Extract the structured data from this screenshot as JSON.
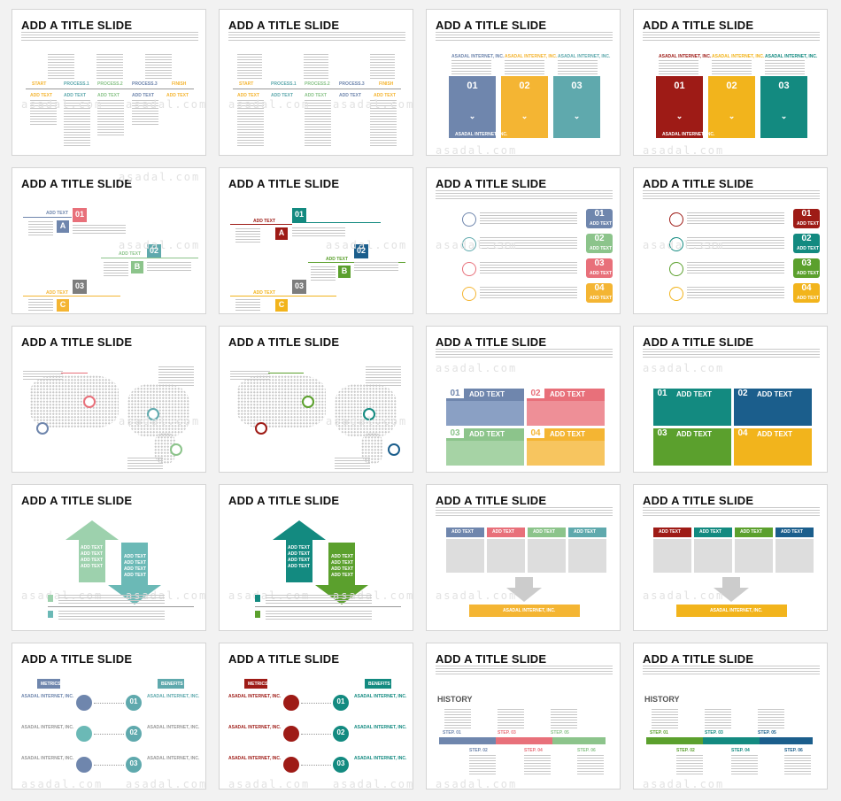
{
  "title": "ADD A TITLE SLIDE",
  "watermark": "asadal.com",
  "labels": {
    "add_text": "ADD TEXT",
    "start": "START",
    "process1": "PROCESS.1",
    "process2": "PROCESS.2",
    "process3": "PROCESS.3",
    "finish": "FINISH",
    "company": "ASADAL INTERNET, INC.",
    "metrics": "METRICS",
    "benefits": "BENEFITS",
    "history": "HISTORY",
    "n01": "01",
    "n02": "02",
    "n03": "03",
    "n04": "04",
    "A": "A",
    "B": "B",
    "C": "C",
    "step01": "STEP. 01",
    "step02": "STEP. 02",
    "step03": "STEP. 03",
    "step04": "STEP. 04",
    "step05": "STEP. 05",
    "step06": "STEP. 06"
  },
  "colors": {
    "blue": "#6f86ad",
    "gold": "#f4b533",
    "teal": "#5fa9ad",
    "green": "#8cc48b",
    "pink": "#e8707a",
    "orange": "#f5a623",
    "gray": "#7d7d7d",
    "darkred": "#9e1b16",
    "yellow": "#f2b41c",
    "darkteal": "#138a80",
    "lime": "#5ba02d",
    "navy": "#1b5e8c",
    "lightgreen": "#9dd1ad"
  }
}
